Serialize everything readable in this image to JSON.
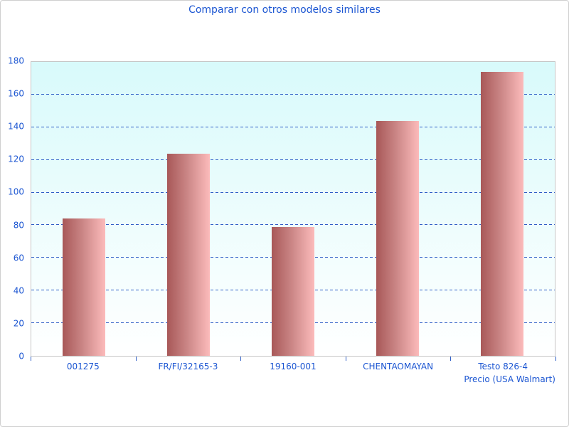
{
  "chart_data": {
    "type": "bar",
    "title": "Comparar con otros modelos similares",
    "categories": [
      "001275",
      "FR/FI/32165-3",
      "19160-001",
      "CHENTAOMAYAN",
      "Testo 826-4"
    ],
    "values": [
      84,
      124,
      79,
      144,
      174
    ],
    "xlabel": "Precio (USA Walmart)",
    "ylabel": "",
    "ylim": [
      0,
      180
    ],
    "yticks": [
      0,
      20,
      40,
      60,
      80,
      100,
      120,
      140,
      160,
      180
    ],
    "grid": "horizontal-dashed",
    "legend": "none"
  },
  "colors": {
    "title_text": "#1c56d2",
    "axis_text": "#1c56d2",
    "gridline": "#2f5fc6",
    "bar_gradient_left": "#a85858",
    "bar_gradient_right": "#fcbbbb",
    "plot_bg_top": "#d8fafb",
    "plot_bg_bottom": "#ffffff",
    "canvas_border": "#cfcfcf",
    "plot_border": "#c6c6c6"
  }
}
